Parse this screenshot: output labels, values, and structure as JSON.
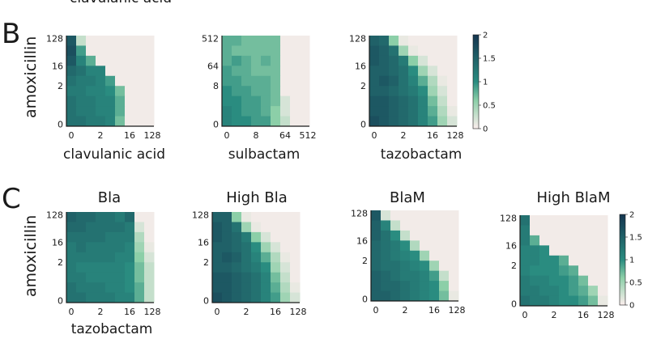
{
  "top_fragment": "clavulanic acid",
  "panel_b": {
    "letter": "B",
    "ylabel": "amoxicillin",
    "colorbar_ticks": [
      "2",
      "1.5",
      "1",
      "0.5",
      "0"
    ]
  },
  "panel_c": {
    "letter": "C",
    "ylabel": "amoxicillin",
    "xlabel": "tazobactam",
    "colorbar_ticks": [
      "2",
      "1.5",
      "1",
      "0.5",
      "0"
    ]
  },
  "colors": {
    "low": "#fbeeee",
    "mid": "#8ccfa8",
    "one": "#2a8c80",
    "high": "#15354f"
  },
  "chart_data": [
    {
      "type": "heatmap",
      "id": "B1",
      "title": "",
      "xlabel": "clavulanic acid",
      "ylabel": "amoxicillin",
      "xticks": [
        "0",
        "2",
        "16",
        "128"
      ],
      "yticks": [
        "128",
        "16",
        "2",
        "0"
      ],
      "zlim": [
        0,
        2
      ],
      "matrix": [
        [
          1.6,
          0.3,
          0.05,
          0.05,
          0.05,
          0.05,
          0.05,
          0.05,
          0.05
        ],
        [
          1.7,
          0.9,
          0.05,
          0.05,
          0.05,
          0.05,
          0.05,
          0.05,
          0.05
        ],
        [
          1.6,
          1.1,
          0.8,
          0.05,
          0.05,
          0.05,
          0.05,
          0.05,
          0.05
        ],
        [
          1.4,
          1.3,
          1.1,
          1.1,
          0.05,
          0.05,
          0.05,
          0.05,
          0.05
        ],
        [
          1.3,
          1.2,
          1.2,
          1.1,
          0.9,
          0.05,
          0.05,
          0.05,
          0.05
        ],
        [
          1.2,
          1.2,
          1.1,
          1.1,
          1.0,
          0.7,
          0.05,
          0.05,
          0.05
        ],
        [
          1.3,
          1.2,
          1.2,
          1.1,
          1.1,
          0.8,
          0.05,
          0.05,
          0.05
        ],
        [
          1.3,
          1.2,
          1.2,
          1.1,
          1.1,
          0.8,
          0.05,
          0.05,
          0.05
        ],
        [
          1.3,
          1.3,
          1.2,
          1.2,
          1.1,
          0.7,
          0.05,
          0.05,
          0.05
        ]
      ]
    },
    {
      "type": "heatmap",
      "id": "B2",
      "title": "",
      "xlabel": "sulbactam",
      "ylabel": "",
      "xticks": [
        "0",
        "8",
        "64",
        "512"
      ],
      "yticks": [
        "512",
        "64",
        "8",
        "0"
      ],
      "zlim": [
        0,
        2
      ],
      "matrix": [
        [
          0.8,
          0.8,
          0.7,
          0.7,
          0.7,
          0.7,
          0.05,
          0.05,
          0.05
        ],
        [
          0.8,
          0.7,
          0.7,
          0.7,
          0.7,
          0.7,
          0.05,
          0.05,
          0.05
        ],
        [
          0.8,
          0.9,
          0.8,
          0.7,
          0.8,
          0.7,
          0.05,
          0.05,
          0.05
        ],
        [
          0.9,
          0.8,
          0.8,
          0.7,
          0.7,
          0.7,
          0.05,
          0.05,
          0.05
        ],
        [
          0.9,
          0.9,
          0.8,
          0.8,
          0.8,
          0.7,
          0.05,
          0.05,
          0.05
        ],
        [
          1.0,
          0.9,
          0.9,
          0.8,
          0.8,
          0.7,
          0.05,
          0.05,
          0.05
        ],
        [
          1.0,
          1.0,
          0.9,
          0.9,
          0.8,
          0.7,
          0.2,
          0.05,
          0.05
        ],
        [
          1.1,
          1.0,
          0.9,
          0.9,
          0.8,
          0.6,
          0.2,
          0.05,
          0.05
        ],
        [
          1.1,
          1.0,
          1.0,
          0.9,
          0.9,
          0.6,
          0.3,
          0.05,
          0.05
        ]
      ]
    },
    {
      "type": "heatmap",
      "id": "B3",
      "title": "",
      "xlabel": "tazobactam",
      "ylabel": "",
      "xticks": [
        "0",
        "2",
        "16",
        "128"
      ],
      "yticks": [
        "128",
        "16",
        "2",
        "0"
      ],
      "zlim": [
        0,
        2
      ],
      "matrix": [
        [
          1.5,
          1.4,
          0.6,
          0.1,
          0.05,
          0.05,
          0.05,
          0.05,
          0.05
        ],
        [
          1.6,
          1.5,
          1.3,
          0.5,
          0.1,
          0.05,
          0.05,
          0.05,
          0.05
        ],
        [
          1.6,
          1.5,
          1.4,
          1.2,
          0.6,
          0.2,
          0.05,
          0.05,
          0.05
        ],
        [
          1.5,
          1.5,
          1.4,
          1.3,
          1.0,
          0.5,
          0.2,
          0.05,
          0.05
        ],
        [
          1.5,
          1.6,
          1.5,
          1.3,
          1.1,
          0.8,
          0.4,
          0.1,
          0.05
        ],
        [
          1.5,
          1.5,
          1.4,
          1.3,
          1.2,
          1.0,
          0.5,
          0.2,
          0.05
        ],
        [
          1.6,
          1.6,
          1.5,
          1.4,
          1.3,
          1.1,
          0.7,
          0.3,
          0.05
        ],
        [
          1.6,
          1.6,
          1.5,
          1.4,
          1.3,
          1.1,
          0.8,
          0.4,
          0.1
        ],
        [
          1.7,
          1.6,
          1.5,
          1.4,
          1.3,
          1.1,
          0.9,
          0.5,
          0.2
        ]
      ]
    },
    {
      "type": "heatmap",
      "id": "C1",
      "title": "Bla",
      "xlabel": "",
      "ylabel": "amoxicillin",
      "xticks": [
        "0",
        "2",
        "16",
        "128"
      ],
      "yticks": [
        "128",
        "16",
        "2",
        "0"
      ],
      "zlim": [
        0,
        2
      ],
      "matrix": [
        [
          1.5,
          1.4,
          1.4,
          1.3,
          1.3,
          1.2,
          1.4,
          0.05,
          0.05
        ],
        [
          1.4,
          1.4,
          1.3,
          1.3,
          1.3,
          1.3,
          1.2,
          0.2,
          0.05
        ],
        [
          1.3,
          1.3,
          1.3,
          1.3,
          1.2,
          1.2,
          1.2,
          0.4,
          0.05
        ],
        [
          1.2,
          1.3,
          1.2,
          1.2,
          1.2,
          1.2,
          1.1,
          0.5,
          0.1
        ],
        [
          1.2,
          1.2,
          1.2,
          1.2,
          1.2,
          1.1,
          1.1,
          0.6,
          0.2
        ],
        [
          1.2,
          1.1,
          1.1,
          1.1,
          1.1,
          1.1,
          1.0,
          0.7,
          0.3
        ],
        [
          1.2,
          1.2,
          1.1,
          1.1,
          1.1,
          1.1,
          1.0,
          0.7,
          0.3
        ],
        [
          1.3,
          1.2,
          1.2,
          1.2,
          1.1,
          1.1,
          1.0,
          0.8,
          0.3
        ],
        [
          1.3,
          1.3,
          1.2,
          1.2,
          1.2,
          1.1,
          1.1,
          0.8,
          0.3
        ]
      ]
    },
    {
      "type": "heatmap",
      "id": "C2",
      "title": "High Bla",
      "xlabel": "",
      "ylabel": "",
      "xticks": [
        "0",
        "2",
        "16",
        "128"
      ],
      "yticks": [
        "128",
        "16",
        "2",
        "0"
      ],
      "zlim": [
        0,
        2
      ],
      "matrix": [
        [
          1.5,
          1.5,
          0.6,
          0.1,
          0.05,
          0.05,
          0.05,
          0.05,
          0.05
        ],
        [
          1.6,
          1.5,
          1.3,
          0.5,
          0.1,
          0.05,
          0.05,
          0.05,
          0.05
        ],
        [
          1.6,
          1.5,
          1.4,
          1.2,
          0.6,
          0.2,
          0.05,
          0.05,
          0.05
        ],
        [
          1.5,
          1.5,
          1.4,
          1.3,
          1.0,
          0.5,
          0.2,
          0.05,
          0.05
        ],
        [
          1.5,
          1.6,
          1.5,
          1.3,
          1.1,
          0.8,
          0.4,
          0.1,
          0.05
        ],
        [
          1.5,
          1.5,
          1.4,
          1.3,
          1.2,
          1.0,
          0.5,
          0.2,
          0.05
        ],
        [
          1.6,
          1.6,
          1.5,
          1.4,
          1.3,
          1.1,
          0.7,
          0.3,
          0.05
        ],
        [
          1.6,
          1.6,
          1.5,
          1.4,
          1.3,
          1.1,
          0.8,
          0.4,
          0.1
        ],
        [
          1.7,
          1.6,
          1.5,
          1.4,
          1.3,
          1.1,
          0.9,
          0.5,
          0.2
        ]
      ]
    },
    {
      "type": "heatmap",
      "id": "C3",
      "title": "BlaM",
      "xlabel": "",
      "ylabel": "",
      "xticks": [
        "0",
        "2",
        "16",
        "128"
      ],
      "yticks": [
        "128",
        "16",
        "2",
        "0"
      ],
      "zlim": [
        0,
        2
      ],
      "matrix": [
        [
          1.6,
          0.2,
          0.05,
          0.05,
          0.05,
          0.05,
          0.05,
          0.05,
          0.05
        ],
        [
          1.5,
          1.1,
          0.3,
          0.05,
          0.05,
          0.05,
          0.05,
          0.05,
          0.05
        ],
        [
          1.5,
          1.3,
          1.0,
          0.3,
          0.05,
          0.05,
          0.05,
          0.05,
          0.05
        ],
        [
          1.4,
          1.3,
          1.2,
          1.0,
          0.4,
          0.05,
          0.05,
          0.05,
          0.05
        ],
        [
          1.4,
          1.3,
          1.2,
          1.1,
          1.0,
          0.5,
          0.05,
          0.05,
          0.05
        ],
        [
          1.4,
          1.3,
          1.3,
          1.2,
          1.1,
          1.0,
          0.5,
          0.05,
          0.05
        ],
        [
          1.5,
          1.4,
          1.3,
          1.2,
          1.2,
          1.1,
          0.9,
          0.3,
          0.05
        ],
        [
          1.5,
          1.4,
          1.4,
          1.3,
          1.2,
          1.1,
          1.0,
          0.6,
          0.05
        ],
        [
          1.5,
          1.5,
          1.4,
          1.3,
          1.2,
          1.1,
          1.0,
          0.7,
          0.1
        ]
      ]
    },
    {
      "type": "heatmap",
      "id": "C4",
      "title": "High BlaM",
      "xlabel": "",
      "ylabel": "",
      "xticks": [
        "0",
        "2",
        "16",
        "128"
      ],
      "yticks": [
        "128",
        "16",
        "2",
        "0"
      ],
      "zlim": [
        0,
        2
      ],
      "matrix": [
        [
          1.3,
          0.05,
          0.05,
          0.05,
          0.05,
          0.05,
          0.05,
          0.05,
          0.05
        ],
        [
          1.2,
          0.05,
          0.05,
          0.05,
          0.05,
          0.05,
          0.05,
          0.05,
          0.05
        ],
        [
          1.2,
          0.8,
          0.05,
          0.05,
          0.05,
          0.05,
          0.05,
          0.05,
          0.05
        ],
        [
          1.1,
          1.1,
          1.0,
          0.05,
          0.05,
          0.05,
          0.05,
          0.05,
          0.05
        ],
        [
          1.1,
          1.1,
          1.0,
          1.0,
          0.8,
          0.05,
          0.05,
          0.05,
          0.05
        ],
        [
          1.1,
          1.0,
          1.0,
          1.0,
          0.9,
          0.8,
          0.05,
          0.05,
          0.05
        ],
        [
          1.2,
          1.1,
          1.1,
          1.0,
          1.0,
          0.9,
          0.7,
          0.05,
          0.05
        ],
        [
          1.2,
          1.2,
          1.1,
          1.1,
          1.0,
          0.9,
          0.8,
          0.5,
          0.05
        ],
        [
          1.3,
          1.2,
          1.2,
          1.1,
          1.0,
          1.0,
          0.9,
          0.7,
          0.1
        ]
      ]
    }
  ]
}
